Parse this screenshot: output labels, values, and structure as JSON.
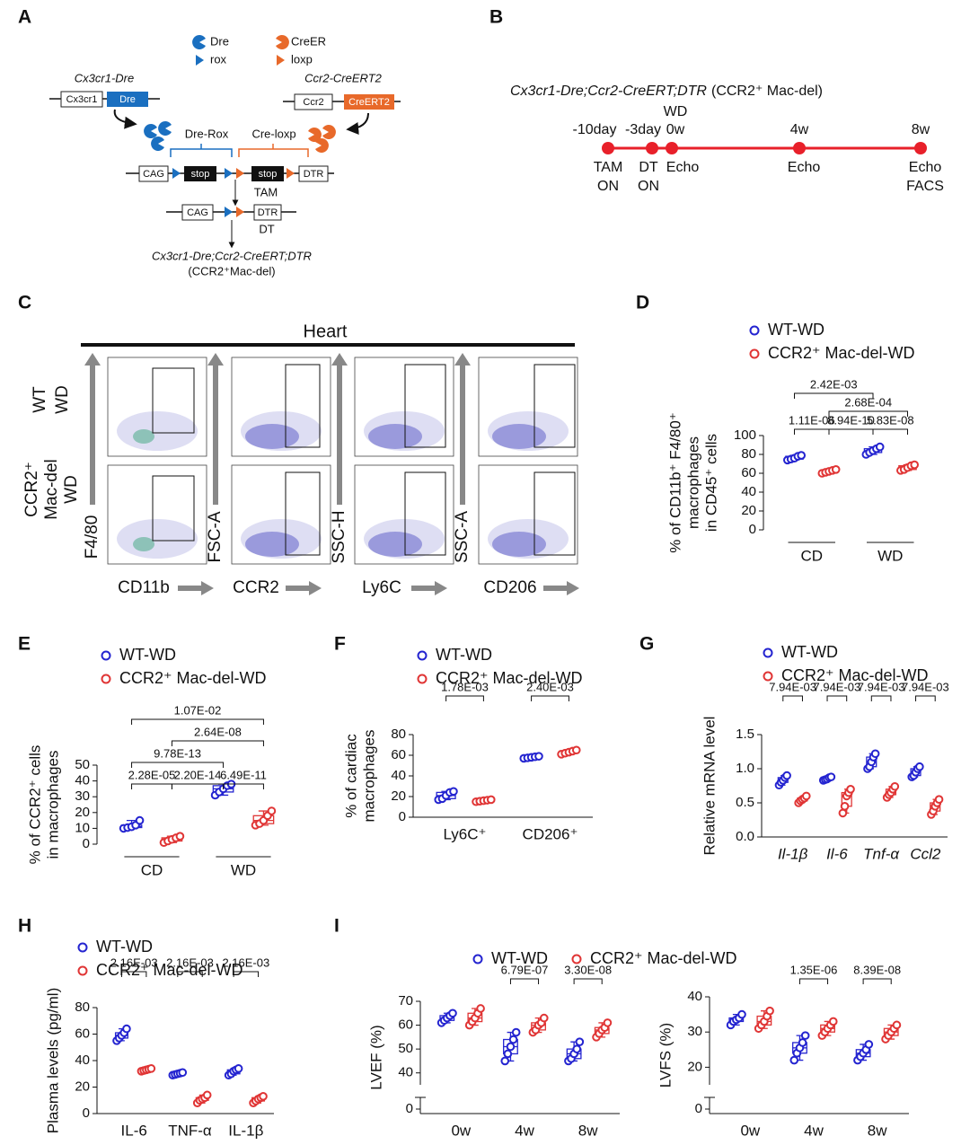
{
  "panel_labels": [
    "A",
    "B",
    "C",
    "D",
    "E",
    "F",
    "G",
    "H",
    "I"
  ],
  "diagram_a": {
    "legend": [
      "Dre",
      "CreER",
      "rox",
      "loxp"
    ],
    "dre_allele": {
      "name": "Cx3cr1-Dre",
      "promoter": "Cx3cr1",
      "gene": "Dre"
    },
    "creer_allele": {
      "name": "Ccr2-CreERT2",
      "promoter": "Ccr2",
      "gene": "CreERT2"
    },
    "dre_rox": "Dre-Rox",
    "cre_loxp": "Cre-loxp",
    "reporter": [
      "CAG",
      "stop",
      "stop",
      "DTR"
    ],
    "tam": "TAM",
    "recombined": [
      "CAG",
      "DTR"
    ],
    "dt": "DT",
    "result": [
      "Cx3cr1-Dre;Ccr2-CreERT;DTR",
      "(CCR2⁺Mac-del)"
    ]
  },
  "timeline_b": {
    "title": "Cx3cr1-Dre;Ccr2-CreERT;DTR",
    "subtitle": "(CCR2⁺ Mac-del)",
    "events": [
      {
        "top": [
          "-10day"
        ],
        "bottom": [
          "TAM",
          "ON"
        ]
      },
      {
        "top": [
          "-3day"
        ],
        "bottom": [
          "DT",
          "ON"
        ]
      },
      {
        "top": [
          "WD",
          "0w"
        ],
        "bottom": [
          "Echo"
        ]
      },
      {
        "top": [
          "4w"
        ],
        "bottom": [
          "Echo"
        ]
      },
      {
        "top": [
          "8w"
        ],
        "bottom": [
          "Echo",
          "FACS"
        ]
      }
    ]
  },
  "flow_c": {
    "title": "Heart",
    "row_labels": [
      [
        "WT",
        "WD"
      ],
      [
        "CCR2⁺",
        "Mac-del",
        "WD"
      ]
    ],
    "y_markers": [
      "F4/80",
      "FSC-A",
      "SSC-H",
      "SSC-A"
    ],
    "x_markers": [
      "CD11b",
      "CCR2",
      "Ly6C",
      "CD206"
    ]
  },
  "chart_data": [
    {
      "type": "box",
      "categories": [
        "CD",
        "WD"
      ],
      "category_brackets": true,
      "ylabel": [
        "% of CD11b⁺ F4/80⁺",
        "macrophages",
        "in CD45⁺ cells"
      ],
      "ylim": [
        0,
        100
      ],
      "yticks": [
        0,
        20,
        40,
        60,
        80,
        100
      ],
      "series": [
        {
          "name": "WT-WD",
          "color": "#2424d0",
          "boxes": [
            [
              74,
              75,
              76,
              78,
              79
            ],
            [
              80,
              82,
              84,
              86,
              88
            ]
          ]
        },
        {
          "name": "CCR2⁺ Mac-del-WD",
          "color": "#e03535",
          "boxes": [
            [
              60,
              61,
              62,
              63,
              64
            ],
            [
              63,
              64,
              66,
              68,
              69
            ]
          ]
        }
      ],
      "annotations": [
        "2.42E-03",
        "2.68E-04",
        "1.11E-06",
        "8.94E-10",
        "5.83E-08"
      ]
    },
    {
      "type": "box",
      "categories": [
        "CD",
        "WD"
      ],
      "category_brackets": true,
      "ylabel": [
        "% of  CCR2⁺ cells",
        "in macrophages"
      ],
      "ylim": [
        0,
        50
      ],
      "yticks": [
        0,
        10,
        20,
        30,
        40,
        50
      ],
      "series": [
        {
          "name": "WT-WD",
          "color": "#2424d0",
          "boxes": [
            [
              10,
              10.5,
              11,
              12,
              15
            ],
            [
              31,
              33,
              35,
              37,
              38
            ]
          ]
        },
        {
          "name": "CCR2⁺ Mac-del-WD",
          "color": "#e03535",
          "boxes": [
            [
              1,
              2,
              3,
              4,
              5
            ],
            [
              12,
              13,
              15,
              18,
              21
            ]
          ]
        }
      ],
      "annotations": [
        "1.07E-02",
        "2.64E-08",
        "9.78E-13",
        "2.28E-05",
        "2.20E-14",
        "6.49E-11"
      ]
    },
    {
      "type": "box",
      "categories": [
        "Ly6C⁺",
        "CD206⁺"
      ],
      "ylabel": [
        "% of cardiac",
        "macrophages"
      ],
      "ylim": [
        0,
        80
      ],
      "yticks": [
        0,
        20,
        40,
        60,
        80
      ],
      "series": [
        {
          "name": "WT-WD",
          "color": "#2424d0",
          "boxes": [
            [
              17,
              18,
              21,
              24,
              25
            ],
            [
              57,
              57.5,
              58,
              58.5,
              59
            ]
          ]
        },
        {
          "name": "CCR2⁺ Mac-del-WD",
          "color": "#e03535",
          "boxes": [
            [
              15,
              15.5,
              16,
              16.5,
              17
            ],
            [
              61,
              62,
              63,
              64,
              65
            ]
          ]
        }
      ],
      "annotations": [
        "1.78E-03",
        "2.40E-03"
      ]
    },
    {
      "type": "box",
      "categories": [
        "Il-1β",
        "Il-6",
        "Tnf-α",
        "Ccl2"
      ],
      "italic_categories": true,
      "ylabel": [
        "Relative mRNA level"
      ],
      "ylim": [
        0,
        1.5
      ],
      "yticks": [
        {
          "value": 0,
          "label": "0.0"
        },
        0.5,
        {
          "value": 1,
          "label": "1.0"
        },
        1.5
      ],
      "series": [
        {
          "name": "WT-WD",
          "color": "#2424d0",
          "boxes": [
            [
              0.76,
              0.8,
              0.83,
              0.87,
              0.9
            ],
            [
              0.83,
              0.84,
              0.85,
              0.87,
              0.88
            ],
            [
              1.0,
              1.03,
              1.1,
              1.17,
              1.22
            ],
            [
              0.88,
              0.9,
              0.95,
              1.0,
              1.03
            ]
          ]
        },
        {
          "name": "CCR2⁺ Mac-del-WD",
          "color": "#e03535",
          "boxes": [
            [
              0.5,
              0.53,
              0.55,
              0.57,
              0.6
            ],
            [
              0.35,
              0.45,
              0.6,
              0.65,
              0.7
            ],
            [
              0.58,
              0.62,
              0.65,
              0.7,
              0.74
            ],
            [
              0.33,
              0.38,
              0.45,
              0.5,
              0.55
            ]
          ]
        }
      ],
      "annotations": [
        "7.94E-03",
        "7.94E-03",
        "7.94E-03",
        "7.94E-03"
      ]
    },
    {
      "type": "box",
      "categories": [
        "IL-6",
        "TNF-α",
        "IL-1β"
      ],
      "ylabel": [
        "Plasma levels (pg/ml)"
      ],
      "ylim": [
        0,
        80
      ],
      "yticks": [
        0,
        20,
        40,
        60,
        80
      ],
      "series": [
        {
          "name": "WT-WD",
          "color": "#2424d0",
          "boxes": [
            [
              55,
              57,
              59,
              61,
              64
            ],
            [
              29,
              29.5,
              30,
              30.5,
              31
            ],
            [
              29,
              30,
              32,
              33,
              34
            ]
          ]
        },
        {
          "name": "CCR2⁺ Mac-del-WD",
          "color": "#e03535",
          "boxes": [
            [
              32,
              32.5,
              33,
              33.5,
              34
            ],
            [
              8,
              10,
              11,
              12,
              14
            ],
            [
              8,
              9.5,
              11,
              12,
              13
            ]
          ]
        }
      ],
      "annotations": [
        "2.16E-03",
        "2.16E-03",
        "2.16E-03"
      ]
    },
    {
      "type": "box",
      "categories": [
        "0w",
        "4w",
        "8w"
      ],
      "axis_break": true,
      "ylabel": [
        "LVEF (%)"
      ],
      "ylim": [
        35,
        70
      ],
      "yticks": [
        0,
        40,
        50,
        60,
        70
      ],
      "series": [
        {
          "name": "WT-WD",
          "color": "#2424d0",
          "boxes": [
            [
              61,
              62,
              63,
              64,
              65
            ],
            [
              45,
              48,
              51,
              54,
              57
            ],
            [
              45,
              46,
              48,
              50,
              53
            ]
          ]
        },
        {
          "name": "CCR2⁺ Mac-del-WD",
          "color": "#e03535",
          "boxes": [
            [
              60,
              61.5,
              63,
              65,
              67
            ],
            [
              57,
              58,
              60,
              61,
              63
            ],
            [
              55,
              56.5,
              58,
              59,
              61
            ]
          ]
        }
      ],
      "annotations": [
        "6.79E-07",
        "3.30E-08"
      ]
    },
    {
      "type": "box",
      "categories": [
        "0w",
        "4w",
        "8w"
      ],
      "axis_break": true,
      "ylabel": [
        "LVFS (%)"
      ],
      "ylim": [
        15,
        40
      ],
      "yticks": [
        0,
        20,
        30,
        40
      ],
      "series": [
        {
          "color": "#2424d0",
          "boxes": [
            [
              32,
              33,
              33.5,
              34,
              35
            ],
            [
              22,
              24,
              25.5,
              27,
              29
            ],
            [
              22,
              23,
              24,
              25,
              26.5
            ]
          ]
        },
        {
          "color": "#e03535",
          "boxes": [
            [
              31,
              32,
              33,
              34.5,
              36
            ],
            [
              29,
              30,
              31,
              32,
              33
            ],
            [
              28,
              29,
              30,
              31,
              32
            ]
          ]
        }
      ],
      "annotations": [
        "1.35E-06",
        "8.39E-08"
      ]
    }
  ]
}
